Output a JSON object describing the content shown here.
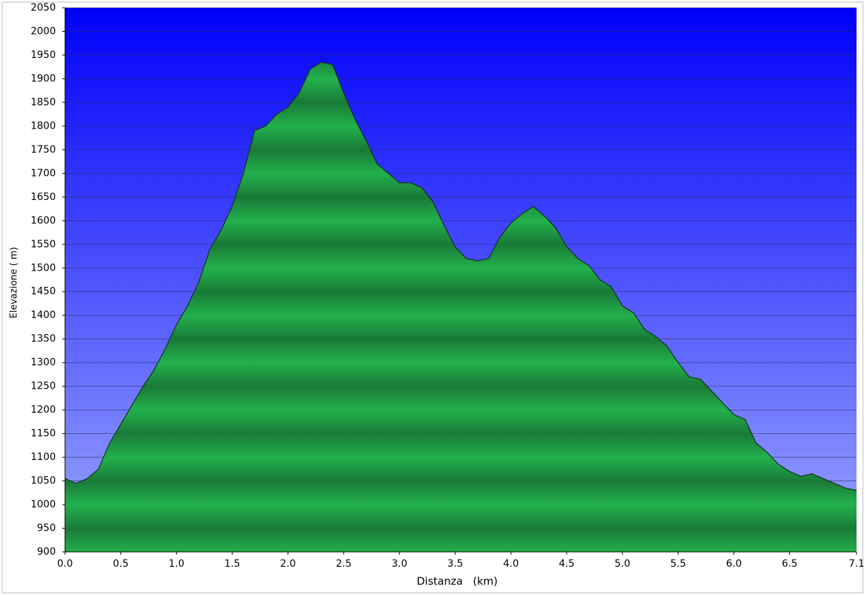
{
  "chart_data": {
    "type": "area",
    "x_label": "Distanza   (km)",
    "y_label": "Elevazione ( m)",
    "x": [
      0,
      0.1,
      0.2,
      0.3,
      0.4,
      0.5,
      0.6,
      0.7,
      0.8,
      0.9,
      1,
      1.1,
      1.2,
      1.3,
      1.4,
      1.5,
      1.6,
      1.7,
      1.8,
      1.9,
      2,
      2.1,
      2.2,
      2.3,
      2.4,
      2.5,
      2.6,
      2.7,
      2.8,
      2.9,
      3,
      3.1,
      3.2,
      3.3,
      3.4,
      3.5,
      3.6,
      3.7,
      3.8,
      3.9,
      4,
      4.1,
      4.2,
      4.3,
      4.4,
      4.5,
      4.6,
      4.7,
      4.8,
      4.9,
      5,
      5.1,
      5.2,
      5.3,
      5.4,
      5.5,
      5.6,
      5.7,
      5.8,
      5.9,
      6,
      6.1,
      6.2,
      6.3,
      6.4,
      6.5,
      6.6,
      6.7,
      6.8,
      6.9,
      7,
      7.1
    ],
    "values": [
      1055,
      1045,
      1055,
      1075,
      1130,
      1170,
      1210,
      1250,
      1285,
      1330,
      1380,
      1420,
      1470,
      1540,
      1580,
      1630,
      1700,
      1790,
      1800,
      1825,
      1840,
      1870,
      1920,
      1935,
      1930,
      1870,
      1815,
      1770,
      1720,
      1700,
      1680,
      1680,
      1670,
      1640,
      1590,
      1545,
      1520,
      1515,
      1520,
      1565,
      1595,
      1615,
      1630,
      1610,
      1585,
      1545,
      1520,
      1505,
      1475,
      1460,
      1420,
      1405,
      1370,
      1355,
      1335,
      1300,
      1270,
      1265,
      1240,
      1215,
      1190,
      1180,
      1130,
      1110,
      1085,
      1070,
      1060,
      1065,
      1055,
      1045,
      1035,
      1030
    ],
    "color": "#1faa47",
    "xlim": [
      0,
      7.1
    ],
    "xticks": [
      {
        "value": 0,
        "label": "0.0"
      },
      0.5,
      {
        "value": 1,
        "label": "1.0"
      },
      1.5,
      {
        "value": 2,
        "label": "2.0"
      },
      2.5,
      {
        "value": 3,
        "label": "3.0"
      },
      3.5,
      {
        "value": 4,
        "label": "4.0"
      },
      4.5,
      {
        "value": 5,
        "label": "5.0"
      },
      5.5,
      {
        "value": 6,
        "label": "6.0"
      },
      6.5,
      7.1
    ],
    "ylim": [
      900,
      2050
    ],
    "yticks": [
      900,
      950,
      1000,
      1050,
      1100,
      1150,
      1200,
      1250,
      1300,
      1350,
      1400,
      1450,
      1500,
      1550,
      1600,
      1650,
      1700,
      1750,
      1800,
      1850,
      1900,
      1950,
      2000,
      2050
    ],
    "grid": true
  }
}
